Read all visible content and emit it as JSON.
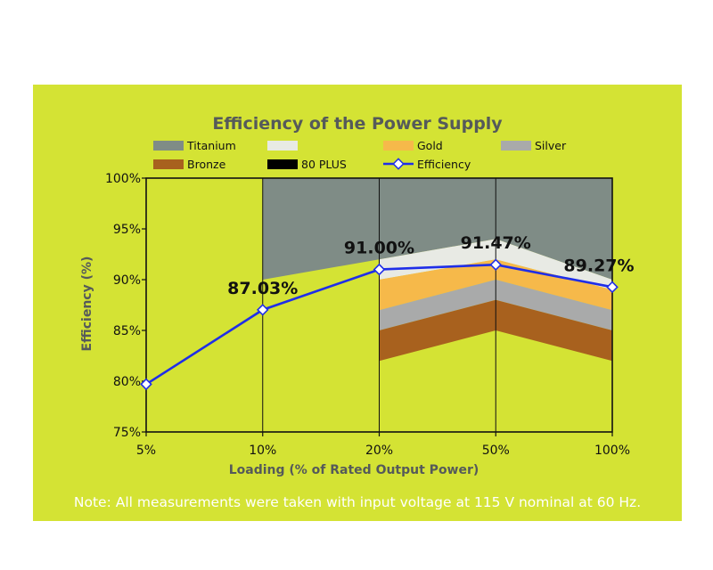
{
  "chart_data": {
    "type": "line",
    "title": "Efficiency of the Power Supply",
    "xlabel": "Loading (% of Rated Output Power)",
    "ylabel": "Efficiency (%)",
    "categories": [
      "5%",
      "10%",
      "20%",
      "50%",
      "100%"
    ],
    "ylim": [
      75,
      100
    ],
    "yticks": [
      75,
      80,
      85,
      90,
      95,
      100
    ],
    "ytick_labels": [
      "75%",
      "80%",
      "85%",
      "90%",
      "95%",
      "100%"
    ],
    "grid": false,
    "legend_position": "top",
    "legend": [
      "Titanium",
      "",
      "Gold",
      "Silver",
      "Bronze",
      "80 PLUS",
      "Efficiency"
    ],
    "bands": [
      {
        "name": "Titanium",
        "color": "#7f8c86",
        "lower": [
          null,
          90,
          92,
          94,
          90
        ],
        "upper": [
          null,
          100,
          100,
          100,
          100
        ]
      },
      {
        "name": "",
        "color": "#e8eae4",
        "lower": [
          null,
          null,
          90,
          92,
          89
        ],
        "upper": [
          null,
          null,
          92,
          94,
          90
        ]
      },
      {
        "name": "Gold",
        "color": "#f6b94a",
        "lower": [
          null,
          null,
          87,
          90,
          87
        ],
        "upper": [
          null,
          null,
          90,
          92,
          89
        ]
      },
      {
        "name": "Silver",
        "color": "#a9aaaa",
        "lower": [
          null,
          null,
          85,
          88,
          85
        ],
        "upper": [
          null,
          null,
          87,
          90,
          87
        ]
      },
      {
        "name": "Bronze",
        "color": "#a8611e",
        "lower": [
          null,
          null,
          82,
          85,
          82
        ],
        "upper": [
          null,
          null,
          85,
          88,
          85
        ]
      }
    ],
    "plus80_color": "#000000",
    "series": [
      {
        "name": "Efficiency",
        "color": "#1f2ee8",
        "values": [
          79.7,
          87.03,
          91.0,
          91.47,
          89.27
        ]
      }
    ],
    "data_labels": [
      "",
      "87.03%",
      "91.00%",
      "91.47%",
      "89.27%"
    ],
    "note": "Note: All measurements were taken with input voltage at 115 V nominal at 60 Hz."
  }
}
